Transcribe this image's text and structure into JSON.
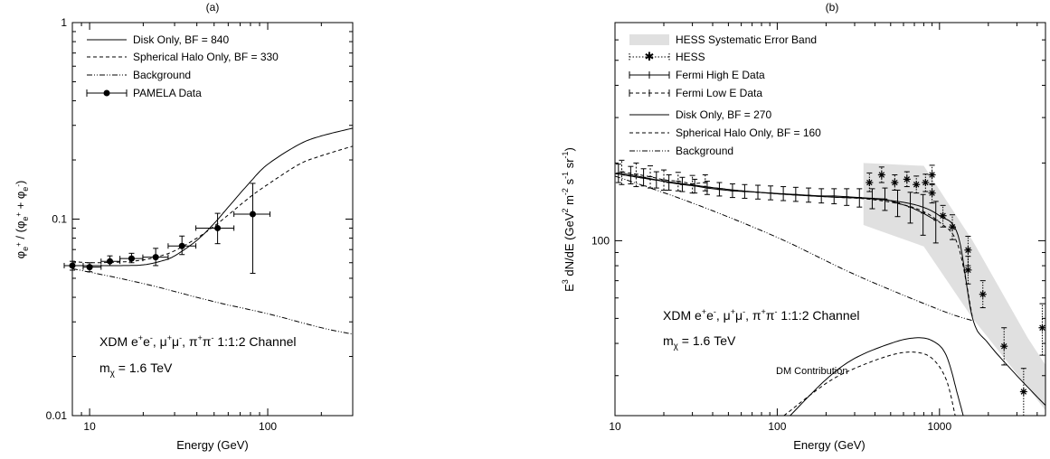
{
  "chart_data": [
    {
      "type": "line",
      "panel_label": "(a)",
      "xlabel": "Energy (GeV)",
      "ylabel": "φe+ / (φe+ + φe-)",
      "xscale": "log",
      "yscale": "log",
      "xlim": [
        8,
        300
      ],
      "ylim": [
        0.01,
        1
      ],
      "x_ticks": [
        10,
        100
      ],
      "y_ticks": [
        0.01,
        0.1,
        1
      ],
      "x_tick_labels": [
        "10",
        "100"
      ],
      "y_tick_labels": [
        "0.01",
        "0.1",
        "1"
      ],
      "legend_position": "top-left",
      "annotations": [
        "XDM e+e-, μ+μ-, π+π- 1:1:2 Channel",
        "mχ = 1.6 TeV"
      ],
      "series": [
        {
          "name": "Disk Only, BF = 840",
          "style": "solid",
          "x": [
            8,
            10,
            15,
            20,
            25,
            30,
            40,
            50,
            60,
            80,
            100,
            150,
            200,
            300
          ],
          "y": [
            0.058,
            0.058,
            0.058,
            0.0585,
            0.061,
            0.065,
            0.078,
            0.095,
            0.115,
            0.155,
            0.19,
            0.24,
            0.265,
            0.29
          ]
        },
        {
          "name": "Spherical Halo Only, BF = 330",
          "style": "dashed",
          "x": [
            8,
            10,
            15,
            20,
            25,
            30,
            40,
            50,
            60,
            80,
            100,
            150,
            200,
            300
          ],
          "y": [
            0.061,
            0.06,
            0.0605,
            0.062,
            0.065,
            0.069,
            0.08,
            0.092,
            0.105,
            0.13,
            0.15,
            0.19,
            0.21,
            0.235
          ]
        },
        {
          "name": "Background",
          "style": "dashdot",
          "x": [
            8,
            20,
            50,
            100,
            200,
            300
          ],
          "y": [
            0.056,
            0.047,
            0.038,
            0.033,
            0.028,
            0.026
          ]
        },
        {
          "name": "PAMELA Data",
          "style": "points",
          "points": [
            {
              "x": 8.0,
              "y": 0.058,
              "xlo": 7.2,
              "xhi": 9.2,
              "ylo": 0.055,
              "yhi": 0.061
            },
            {
              "x": 10.0,
              "y": 0.057,
              "xlo": 9.2,
              "xhi": 11.6,
              "ylo": 0.054,
              "yhi": 0.06
            },
            {
              "x": 13.0,
              "y": 0.061,
              "xlo": 11.6,
              "xhi": 14.8,
              "ylo": 0.058,
              "yhi": 0.065
            },
            {
              "x": 17.2,
              "y": 0.063,
              "xlo": 14.8,
              "xhi": 19.9,
              "ylo": 0.06,
              "yhi": 0.067
            },
            {
              "x": 23.5,
              "y": 0.064,
              "xlo": 19.9,
              "xhi": 27.6,
              "ylo": 0.058,
              "yhi": 0.071
            },
            {
              "x": 33.0,
              "y": 0.073,
              "xlo": 27.6,
              "xhi": 39.5,
              "ylo": 0.066,
              "yhi": 0.082
            },
            {
              "x": 52.3,
              "y": 0.09,
              "xlo": 39.5,
              "xhi": 64.6,
              "ylo": 0.075,
              "yhi": 0.107
            },
            {
              "x": 82.4,
              "y": 0.106,
              "xlo": 64.6,
              "xhi": 103.0,
              "ylo": 0.053,
              "yhi": 0.152
            }
          ]
        }
      ]
    },
    {
      "type": "line",
      "panel_label": "(b)",
      "xlabel": "Energy (GeV)",
      "ylabel": "E3 dN/dE (GeV2 m-2 s-1 sr-1)",
      "xscale": "log",
      "yscale": "log",
      "xlim": [
        10,
        4500
      ],
      "ylim": [
        21,
        700
      ],
      "x_ticks": [
        10,
        100,
        1000
      ],
      "y_ticks": [
        100
      ],
      "x_tick_labels": [
        "10",
        "100",
        "1000"
      ],
      "y_tick_labels": [
        "100"
      ],
      "legend_position": "top-left",
      "annotations": [
        "XDM e+e-, μ+μ-, π+π- 1:1:2 Channel",
        "mχ = 1.6 TeV",
        "DM Contribution"
      ],
      "band": {
        "name": "HESS Systematic Error Band",
        "color": "#e0e0e0",
        "upper": {
          "x": [
            340,
            800,
            1600,
            3500,
            4500
          ],
          "y": [
            200,
            195,
            100,
            42,
            33
          ]
        },
        "lower": {
          "x": [
            4500,
            3500,
            1600,
            800,
            340
          ],
          "y": [
            22,
            27,
            50,
            95,
            115
          ]
        }
      },
      "series": [
        {
          "name": "HESS",
          "style": "dotted-star",
          "points": [
            {
              "x": 370,
              "y": 168,
              "ylo": 155,
              "yhi": 183
            },
            {
              "x": 440,
              "y": 180,
              "ylo": 168,
              "yhi": 193
            },
            {
              "x": 530,
              "y": 168,
              "ylo": 157,
              "yhi": 180
            },
            {
              "x": 630,
              "y": 173,
              "ylo": 162,
              "yhi": 185
            },
            {
              "x": 720,
              "y": 165,
              "ylo": 153,
              "yhi": 178
            },
            {
              "x": 820,
              "y": 168,
              "ylo": 155,
              "yhi": 181
            },
            {
              "x": 900,
              "y": 180,
              "ylo": 165,
              "yhi": 196
            },
            {
              "x": 900,
              "y": 153,
              "ylo": 140,
              "yhi": 166
            },
            {
              "x": 1050,
              "y": 125,
              "ylo": 113,
              "yhi": 137
            },
            {
              "x": 1200,
              "y": 113,
              "ylo": 101,
              "yhi": 126
            },
            {
              "x": 1500,
              "y": 92,
              "ylo": 80,
              "yhi": 104
            },
            {
              "x": 1500,
              "y": 77,
              "ylo": 68,
              "yhi": 87
            },
            {
              "x": 1850,
              "y": 62,
              "ylo": 55,
              "yhi": 70
            },
            {
              "x": 2500,
              "y": 39,
              "ylo": 33,
              "yhi": 46
            },
            {
              "x": 3300,
              "y": 26,
              "ylo": 21,
              "yhi": 32
            },
            {
              "x": 4300,
              "y": 46,
              "ylo": 36,
              "yhi": 57
            }
          ]
        },
        {
          "name": "Fermi High E Data",
          "style": "solid-plus",
          "points": [
            {
              "x": 10.5,
              "y": 183,
              "ylo": 168,
              "yhi": 198
            },
            {
              "x": 12.5,
              "y": 180,
              "ylo": 166,
              "yhi": 194
            },
            {
              "x": 15,
              "y": 176,
              "ylo": 163,
              "yhi": 190
            },
            {
              "x": 18,
              "y": 172,
              "ylo": 160,
              "yhi": 185
            },
            {
              "x": 21.5,
              "y": 168,
              "ylo": 157,
              "yhi": 180
            },
            {
              "x": 26,
              "y": 165,
              "ylo": 155,
              "yhi": 176
            },
            {
              "x": 31,
              "y": 163,
              "ylo": 153,
              "yhi": 173
            },
            {
              "x": 37,
              "y": 160,
              "ylo": 151,
              "yhi": 170
            },
            {
              "x": 44,
              "y": 158,
              "ylo": 149,
              "yhi": 168
            },
            {
              "x": 53,
              "y": 156,
              "ylo": 147,
              "yhi": 166
            },
            {
              "x": 63,
              "y": 155,
              "ylo": 146,
              "yhi": 165
            },
            {
              "x": 76,
              "y": 154,
              "ylo": 145,
              "yhi": 164
            },
            {
              "x": 91,
              "y": 153,
              "ylo": 144,
              "yhi": 163
            },
            {
              "x": 109,
              "y": 152,
              "ylo": 143,
              "yhi": 162
            },
            {
              "x": 130,
              "y": 151,
              "ylo": 142,
              "yhi": 161
            },
            {
              "x": 156,
              "y": 150,
              "ylo": 141,
              "yhi": 160
            },
            {
              "x": 187,
              "y": 149,
              "ylo": 140,
              "yhi": 159
            },
            {
              "x": 224,
              "y": 149,
              "ylo": 139,
              "yhi": 159
            },
            {
              "x": 268,
              "y": 148,
              "ylo": 137,
              "yhi": 159
            },
            {
              "x": 321,
              "y": 147,
              "ylo": 135,
              "yhi": 159
            },
            {
              "x": 385,
              "y": 146,
              "ylo": 133,
              "yhi": 159
            },
            {
              "x": 461,
              "y": 145,
              "ylo": 131,
              "yhi": 160
            },
            {
              "x": 552,
              "y": 140,
              "ylo": 124,
              "yhi": 157
            },
            {
              "x": 661,
              "y": 135,
              "ylo": 117,
              "yhi": 154
            },
            {
              "x": 792,
              "y": 128,
              "ylo": 105,
              "yhi": 151
            },
            {
              "x": 949,
              "y": 120,
              "ylo": 98,
              "yhi": 142
            }
          ]
        },
        {
          "name": "Fermi Low E Data",
          "style": "dashed-plus",
          "points": [
            {
              "x": 11,
              "y": 185,
              "ylo": 165,
              "yhi": 205
            },
            {
              "x": 13.5,
              "y": 181,
              "ylo": 162,
              "yhi": 200
            },
            {
              "x": 16.5,
              "y": 177,
              "ylo": 160,
              "yhi": 195
            },
            {
              "x": 20,
              "y": 172,
              "ylo": 157,
              "yhi": 188
            },
            {
              "x": 24.5,
              "y": 170,
              "ylo": 156,
              "yhi": 184
            },
            {
              "x": 30,
              "y": 166,
              "ylo": 153,
              "yhi": 179
            },
            {
              "x": 36,
              "y": 168,
              "ylo": 156,
              "yhi": 180
            }
          ]
        },
        {
          "name": "Disk Only, BF = 270",
          "style": "solid",
          "x": [
            10,
            20,
            50,
            100,
            200,
            400,
            700,
            1000,
            1300,
            1600,
            2000,
            3000,
            4500
          ],
          "y": [
            182,
            170,
            158,
            152,
            148,
            145,
            138,
            125,
            105,
            50,
            40,
            30,
            23
          ]
        },
        {
          "name": "Spherical Halo Only, BF = 160",
          "style": "dashed",
          "x": [
            10,
            20,
            50,
            100,
            200,
            400,
            700,
            1000,
            1300,
            1600
          ],
          "y": [
            182,
            170,
            158,
            152,
            148,
            144,
            134,
            118,
            96,
            50
          ]
        },
        {
          "name": "Background",
          "style": "dashdot",
          "x": [
            10,
            30,
            100,
            300,
            1000,
            1600
          ],
          "y": [
            178,
            140,
            103,
            74,
            54,
            49
          ]
        },
        {
          "name": "DM Contribution (Disk)",
          "style": "solid",
          "x": [
            120,
            200,
            300,
            500,
            700,
            900,
            1100,
            1300,
            1400
          ],
          "y": [
            21,
            29,
            35,
            40,
            42,
            41,
            36,
            25,
            21
          ]
        },
        {
          "name": "DM Contribution (Halo)",
          "style": "dashed",
          "x": [
            110,
            200,
            300,
            500,
            700,
            900,
            1100,
            1250
          ],
          "y": [
            21,
            28,
            32,
            36,
            37,
            35,
            29,
            21
          ]
        }
      ]
    }
  ],
  "labels": {
    "panel_a_title": "(a)",
    "panel_b_title": "(b)",
    "x_title": "Energy (GeV)",
    "a_y_title_main": "φ",
    "b_y_title_main": "E",
    "legend_a": [
      "Disk Only, BF = 840",
      "Spherical Halo Only, BF = 330",
      "Background",
      "PAMELA Data"
    ],
    "legend_b": [
      "HESS Systematic Error Band",
      "HESS",
      "Fermi High E Data",
      "Fermi Low E Data",
      "Disk Only, BF = 270",
      "Spherical Halo Only, BF = 160",
      "Background"
    ],
    "annot_channel": "XDM e+e-, μ+μ-, π+π- 1:1:2 Channel",
    "annot_mass": "mχ = 1.6 TeV",
    "annot_dm": "DM Contribution"
  }
}
